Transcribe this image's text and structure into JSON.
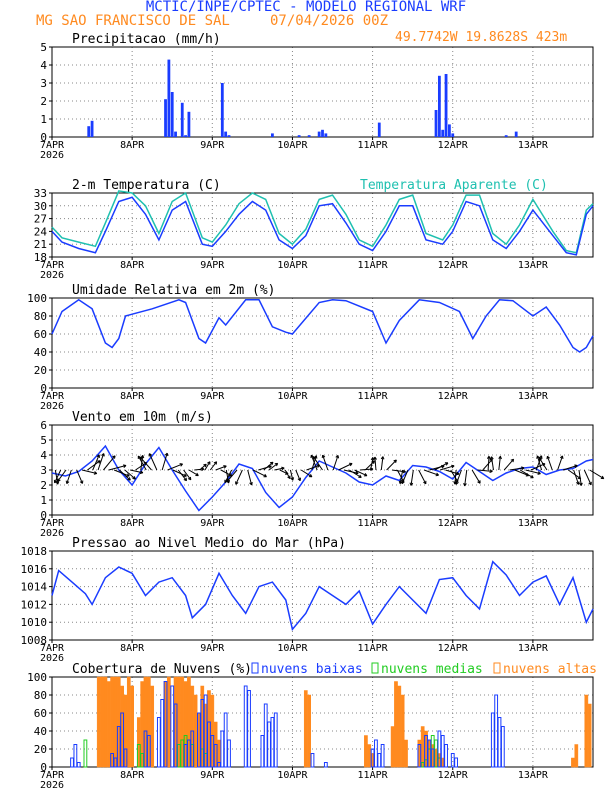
{
  "header": {
    "title": "MCTIC/INPE/CPTEC - MODELO REGIONAL WRF",
    "station": "MG SAO FRANCISCO DE SAL",
    "datetime": "07/04/2026 00Z",
    "coords": "49.7742W 19.8628S 423m"
  },
  "colors": {
    "blue": "#1a3cff",
    "cyan": "#1fc0b0",
    "orange": "#ff8a1f",
    "green": "#22cc22",
    "grid": "#888888"
  },
  "chart_data": [
    {
      "type": "bar",
      "title": "Precipitacao (mm/h)",
      "x_ticks": [
        "7APR\n2026",
        "8APR",
        "9APR",
        "10APR",
        "11APR",
        "12APR",
        "13APR"
      ],
      "ylim": [
        0,
        5
      ],
      "y_ticks": [
        0,
        1,
        2,
        3,
        4,
        5
      ],
      "hours": [
        11,
        12,
        34,
        35,
        36,
        37,
        39,
        40,
        41,
        51,
        52,
        53,
        66,
        74,
        77,
        80,
        81,
        82,
        98,
        115,
        116,
        117,
        118,
        119,
        120,
        136,
        139
      ],
      "values": [
        0.6,
        0.9,
        2.1,
        4.3,
        2.5,
        0.3,
        1.9,
        0.1,
        1.4,
        3.0,
        0.3,
        0.1,
        0.2,
        0.1,
        0.1,
        0.3,
        0.4,
        0.2,
        0.8,
        1.5,
        3.4,
        0.4,
        3.5,
        0.7,
        0.2,
        0.1,
        0.3
      ]
    },
    {
      "type": "line",
      "title": "2-m Temperatura (C)",
      "legend": "Temperatura Aparente (C)",
      "x_ticks": [
        "7APR\n2026",
        "8APR",
        "9APR",
        "10APR",
        "11APR",
        "12APR",
        "13APR"
      ],
      "ylim": [
        18,
        33
      ],
      "y_ticks": [
        18,
        21,
        24,
        27,
        30,
        33
      ],
      "series": [
        {
          "name": "temperatura",
          "x": [
            0,
            3,
            8,
            13,
            16,
            20,
            24,
            28,
            32,
            36,
            40,
            45,
            48,
            52,
            56,
            60,
            64,
            68,
            72,
            76,
            80,
            84,
            88,
            92,
            96,
            100,
            104,
            108,
            112,
            117,
            120,
            124,
            128,
            132,
            136,
            140,
            144,
            150,
            154,
            157,
            160,
            162
          ],
          "values": [
            24,
            21.5,
            20,
            19,
            24,
            31,
            32,
            28,
            22,
            29,
            31,
            21,
            20.5,
            24,
            28,
            31,
            29,
            22,
            20,
            23,
            30,
            30.5,
            26,
            21,
            19.5,
            24,
            30,
            30,
            22,
            21,
            24,
            31,
            30,
            22,
            20,
            24,
            29,
            23,
            19,
            18.5,
            28,
            30
          ]
        },
        {
          "name": "Temperatura Aparente (C)",
          "x": [
            0,
            3,
            8,
            13,
            16,
            20,
            24,
            28,
            32,
            36,
            40,
            45,
            48,
            52,
            56,
            60,
            64,
            68,
            72,
            76,
            80,
            84,
            88,
            92,
            96,
            100,
            104,
            108,
            112,
            117,
            120,
            124,
            128,
            132,
            136,
            140,
            144,
            150,
            154,
            157,
            160,
            162
          ],
          "values": [
            25,
            22.5,
            21.5,
            20.5,
            26,
            33.5,
            33,
            30,
            23.5,
            31,
            33,
            22.5,
            21.5,
            25.5,
            30.5,
            33,
            31.5,
            23.5,
            21,
            24.5,
            31.5,
            32.5,
            28,
            22,
            20.5,
            25.5,
            31.5,
            32.5,
            23.5,
            22,
            25.5,
            32.5,
            32.5,
            23.5,
            21,
            25.5,
            31.5,
            24,
            19.5,
            19,
            29,
            30.5
          ]
        }
      ]
    },
    {
      "type": "line",
      "title": "Umidade Relativa em 2m (%)",
      "x_ticks": [
        "7APR\n2026",
        "8APR",
        "9APR",
        "10APR",
        "11APR",
        "12APR",
        "13APR"
      ],
      "ylim": [
        0,
        100
      ],
      "y_ticks": [
        0,
        20,
        40,
        60,
        80,
        100
      ],
      "x": [
        0,
        3,
        8,
        12,
        16,
        18,
        20,
        22,
        24,
        30,
        38,
        40,
        44,
        46,
        50,
        52,
        58,
        62,
        66,
        70,
        72,
        80,
        84,
        88,
        96,
        100,
        104,
        110,
        116,
        122,
        126,
        130,
        134,
        138,
        144,
        148,
        152,
        156,
        158,
        160,
        162
      ],
      "values": [
        60,
        85,
        98,
        88,
        50,
        45,
        55,
        80,
        82,
        88,
        98,
        95,
        55,
        50,
        78,
        70,
        98,
        98,
        68,
        62,
        60,
        95,
        98,
        97,
        85,
        50,
        75,
        98,
        95,
        85,
        55,
        80,
        98,
        97,
        80,
        90,
        70,
        45,
        40,
        45,
        58
      ]
    },
    {
      "type": "line",
      "title": "Vento em 10m (m/s)",
      "x_ticks": [
        "7APR\n2026",
        "8APR",
        "9APR",
        "10APR",
        "11APR",
        "12APR",
        "13APR"
      ],
      "ylim": [
        0,
        6
      ],
      "y_ticks": [
        0,
        1,
        2,
        3,
        4,
        5,
        6
      ],
      "x": [
        0,
        4,
        8,
        12,
        16,
        20,
        24,
        28,
        32,
        36,
        40,
        44,
        48,
        52,
        56,
        60,
        64,
        68,
        72,
        76,
        80,
        84,
        88,
        92,
        96,
        100,
        104,
        108,
        112,
        116,
        120,
        124,
        128,
        132,
        136,
        140,
        144,
        148,
        152,
        156,
        160,
        162
      ],
      "values": [
        2.8,
        2.6,
        2.9,
        3.6,
        4.6,
        3.0,
        2.0,
        3.4,
        4.5,
        3.0,
        1.6,
        0.3,
        1.2,
        2.2,
        3.4,
        3.1,
        1.5,
        0.5,
        1.2,
        2.5,
        3.6,
        3.2,
        2.8,
        2.2,
        2.0,
        2.6,
        2.3,
        3.3,
        3.2,
        2.9,
        2.4,
        3.5,
        2.9,
        2.3,
        2.8,
        3.1,
        3.2,
        2.7,
        3.0,
        3.1,
        3.6,
        3.7
      ]
    },
    {
      "type": "line",
      "title": "Pressao ao Nivel Medio do Mar (hPa)",
      "x_ticks": [
        "7APR\n2026",
        "8APR",
        "9APR",
        "10APR",
        "11APR",
        "12APR",
        "13APR"
      ],
      "ylim": [
        1008,
        1018
      ],
      "y_ticks": [
        1008,
        1010,
        1012,
        1014,
        1016,
        1018
      ],
      "x": [
        0,
        2,
        6,
        10,
        12,
        16,
        20,
        24,
        28,
        32,
        36,
        40,
        42,
        46,
        50,
        54,
        58,
        62,
        66,
        70,
        72,
        76,
        80,
        84,
        88,
        92,
        96,
        100,
        104,
        108,
        112,
        116,
        120,
        124,
        128,
        132,
        136,
        140,
        144,
        148,
        152,
        156,
        160,
        162
      ],
      "values": [
        1013,
        1015.8,
        1014.5,
        1013.2,
        1012,
        1015,
        1016.2,
        1015.5,
        1013,
        1014.5,
        1015,
        1013,
        1010.5,
        1012,
        1015.5,
        1013,
        1011,
        1014,
        1014.5,
        1012.5,
        1009.2,
        1011,
        1014,
        1013,
        1012,
        1013.5,
        1009.8,
        1012,
        1014,
        1012.5,
        1011,
        1014.8,
        1015,
        1013,
        1011.5,
        1016.8,
        1015.3,
        1013,
        1014.5,
        1015.2,
        1012,
        1015,
        1010,
        1011.5
      ]
    },
    {
      "type": "bar",
      "title": "Cobertura de Nuvens (%)",
      "x_ticks": [
        "7APR\n2026",
        "8APR",
        "9APR",
        "10APR",
        "11APR",
        "12APR",
        "13APR"
      ],
      "ylim": [
        0,
        100
      ],
      "y_ticks": [
        0,
        20,
        40,
        60,
        80,
        100
      ],
      "series": [
        {
          "name": "nuvens baixas",
          "x": [
            6,
            7,
            8,
            18,
            19,
            20,
            21,
            22,
            28,
            29,
            32,
            33,
            34,
            36,
            37,
            40,
            41,
            42,
            44,
            45,
            46,
            47,
            48,
            49,
            50,
            51,
            52,
            53,
            58,
            59,
            63,
            64,
            65,
            66,
            67,
            78,
            82,
            96,
            97,
            98,
            99,
            110,
            112,
            113,
            114,
            116,
            117,
            118,
            120,
            121,
            132,
            133,
            134,
            135
          ],
          "values": [
            10,
            25,
            5,
            15,
            10,
            45,
            60,
            20,
            40,
            35,
            55,
            75,
            95,
            90,
            70,
            25,
            30,
            40,
            60,
            75,
            80,
            50,
            35,
            25,
            5,
            40,
            60,
            30,
            90,
            85,
            35,
            70,
            50,
            55,
            60,
            15,
            5,
            20,
            30,
            15,
            25,
            25,
            35,
            30,
            20,
            40,
            35,
            25,
            15,
            10,
            60,
            80,
            55,
            45
          ]
        },
        {
          "name": "nuvens medias",
          "x": [
            10,
            26,
            27,
            38,
            39,
            40,
            41,
            42,
            45,
            46,
            111,
            112,
            113,
            114,
            115,
            116
          ],
          "values": [
            30,
            25,
            15,
            25,
            30,
            35,
            30,
            25,
            20,
            15,
            5,
            8,
            20,
            35,
            30,
            10
          ]
        },
        {
          "name": "nuvens altas",
          "x": [
            14,
            15,
            16,
            17,
            18,
            19,
            20,
            21,
            22,
            23,
            24,
            26,
            27,
            28,
            29,
            30,
            34,
            35,
            37,
            38,
            39,
            40,
            41,
            42,
            43,
            44,
            45,
            46,
            47,
            48,
            49,
            50,
            76,
            77,
            94,
            95,
            96,
            102,
            103,
            104,
            105,
            106,
            110,
            111,
            112,
            113,
            114,
            115,
            116,
            117,
            156,
            157,
            160,
            161
          ],
          "values": [
            100,
            100,
            100,
            95,
            100,
            100,
            100,
            90,
            80,
            100,
            90,
            55,
            95,
            100,
            100,
            90,
            95,
            100,
            100,
            100,
            100,
            95,
            100,
            90,
            80,
            60,
            90,
            70,
            85,
            80,
            50,
            30,
            85,
            80,
            35,
            25,
            15,
            45,
            95,
            90,
            80,
            30,
            30,
            45,
            40,
            30,
            25,
            20,
            15,
            10,
            10,
            25,
            80,
            70
          ]
        }
      ]
    }
  ]
}
